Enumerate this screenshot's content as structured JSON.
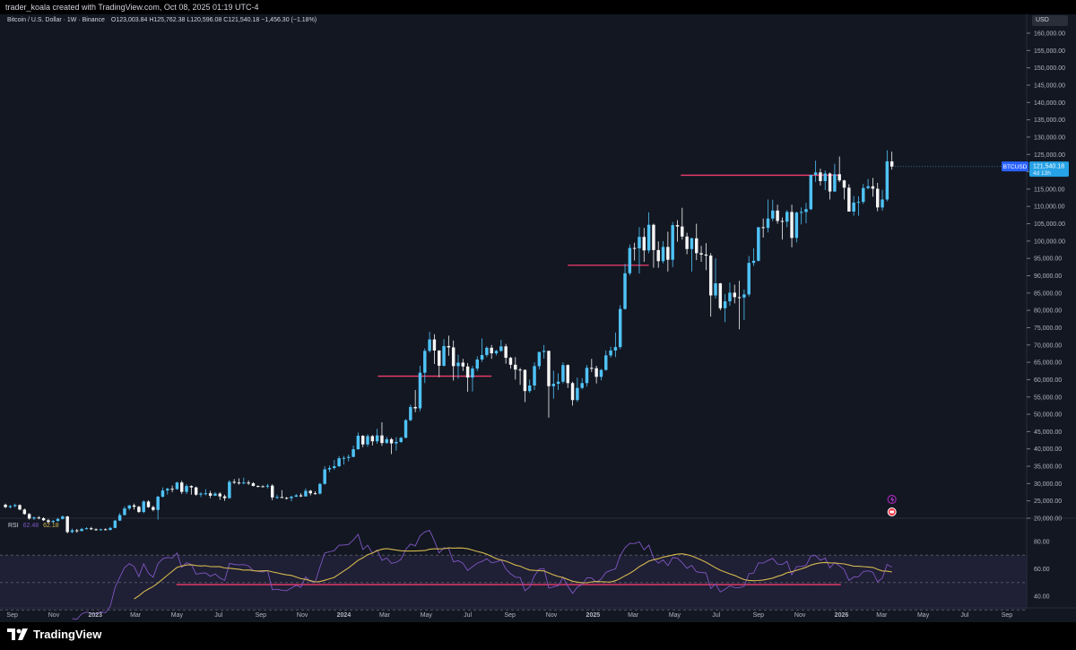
{
  "header": {
    "attribution": "trader_koala created with TradingView.com, Oct 08, 2025 01:19 UTC-4",
    "symbol_line": "Bitcoin / U.S. Dollar · 1W · Binance",
    "ohlc": "O123,003.84  H125,762.38  L120,596.08  C121,540.18  −1,456.30 (−1.18%)"
  },
  "currency_button": "USD",
  "price_tag": {
    "symbol": "BTCUSD",
    "price": "121,540.18",
    "countdown": "4d 13h"
  },
  "rsi": {
    "name": "RSI",
    "value": "62.48",
    "ma_value": "62.18"
  },
  "brand": "TradingView",
  "colors": {
    "up": "#4fc3f7",
    "down": "#f5f5f5",
    "level": "#f23d6d",
    "rsi": "#7e57c2",
    "rsi_ma": "#d4b84f",
    "background": "#131722"
  },
  "chart_data": {
    "type": "candlestick",
    "timeframe": "1W",
    "price_axis": {
      "min": 20000,
      "max": 160000,
      "step": 5000,
      "scale": "linear",
      "labels": [
        "160,000.00",
        "155,000.00",
        "150,000.00",
        "145,000.00",
        "140,000.00",
        "135,000.00",
        "130,000.00",
        "125,000.00",
        "120,000.00",
        "115,000.00",
        "110,000.00",
        "105,000.00",
        "100,000.00",
        "95,000.00",
        "90,000.00",
        "85,000.00",
        "80,000.00",
        "75,000.00",
        "70,000.00",
        "65,000.00",
        "60,000.00",
        "55,000.00",
        "50,000.00",
        "45,000.00",
        "40,000.00",
        "35,000.00",
        "30,000.00",
        "25,000.00",
        "20,000.00"
      ]
    },
    "time_axis": {
      "start": "2022-08-14",
      "end": "2026-09-30",
      "ticks": [
        {
          "label": "Sep",
          "date": "2022-09-01"
        },
        {
          "label": "Nov",
          "date": "2022-11-01"
        },
        {
          "label": "2023",
          "date": "2023-01-01"
        },
        {
          "label": "Mar",
          "date": "2023-03-01"
        },
        {
          "label": "May",
          "date": "2023-05-01"
        },
        {
          "label": "Jul",
          "date": "2023-07-01"
        },
        {
          "label": "Sep",
          "date": "2023-09-01"
        },
        {
          "label": "Nov",
          "date": "2023-11-01"
        },
        {
          "label": "2024",
          "date": "2024-01-01"
        },
        {
          "label": "Mar",
          "date": "2024-03-01"
        },
        {
          "label": "May",
          "date": "2024-05-01"
        },
        {
          "label": "Jul",
          "date": "2024-07-01"
        },
        {
          "label": "Sep",
          "date": "2024-09-01"
        },
        {
          "label": "Nov",
          "date": "2024-11-01"
        },
        {
          "label": "2025",
          "date": "2025-01-01"
        },
        {
          "label": "Mar",
          "date": "2025-03-01"
        },
        {
          "label": "May",
          "date": "2025-05-01"
        },
        {
          "label": "Jul",
          "date": "2025-07-01"
        },
        {
          "label": "Sep",
          "date": "2025-09-01"
        },
        {
          "label": "Nov",
          "date": "2025-11-01"
        },
        {
          "label": "2026",
          "date": "2026-01-01"
        },
        {
          "label": "Mar",
          "date": "2026-03-01"
        },
        {
          "label": "May",
          "date": "2026-05-01"
        },
        {
          "label": "Jul",
          "date": "2026-07-01"
        },
        {
          "label": "Sep",
          "date": "2026-09-01"
        }
      ]
    },
    "first_candle_week": "2022-08-22",
    "candles": [
      [
        23900,
        24200,
        22900,
        23200
      ],
      [
        23200,
        23800,
        22800,
        23500
      ],
      [
        23500,
        24200,
        23100,
        23800
      ],
      [
        23800,
        24000,
        22300,
        22500
      ],
      [
        22500,
        22800,
        21000,
        21200
      ],
      [
        21200,
        21500,
        19600,
        19900
      ],
      [
        19900,
        20500,
        19500,
        20200
      ],
      [
        20200,
        20600,
        19700,
        20000
      ],
      [
        20000,
        20300,
        19200,
        19400
      ],
      [
        19400,
        19800,
        18500,
        18900
      ],
      [
        18900,
        19500,
        18700,
        19200
      ],
      [
        19200,
        20100,
        19000,
        19800
      ],
      [
        19800,
        20800,
        19600,
        20500
      ],
      [
        20500,
        20700,
        15600,
        16000
      ],
      [
        16000,
        17000,
        15700,
        16500
      ],
      [
        16500,
        16900,
        15800,
        16300
      ],
      [
        16300,
        17200,
        16200,
        16900
      ],
      [
        16900,
        17400,
        16700,
        17100
      ],
      [
        17100,
        17500,
        16600,
        16800
      ],
      [
        16800,
        17100,
        16400,
        16600
      ],
      [
        16600,
        17000,
        16400,
        16800
      ],
      [
        16800,
        17100,
        16500,
        16600
      ],
      [
        16600,
        17500,
        16500,
        17200
      ],
      [
        17200,
        19500,
        17100,
        19300
      ],
      [
        19300,
        21500,
        19200,
        20900
      ],
      [
        20900,
        23400,
        20800,
        22800
      ],
      [
        22800,
        23800,
        22300,
        23700
      ],
      [
        23700,
        24200,
        22500,
        23300
      ],
      [
        23300,
        23600,
        21500,
        21800
      ],
      [
        21800,
        25200,
        21400,
        24800
      ],
      [
        24800,
        25200,
        23000,
        23200
      ],
      [
        23200,
        23600,
        22000,
        22400
      ],
      [
        22400,
        26500,
        19600,
        26200
      ],
      [
        26200,
        28900,
        26000,
        28000
      ],
      [
        28000,
        28800,
        26800,
        28500
      ],
      [
        28500,
        29400,
        27500,
        28400
      ],
      [
        28400,
        30500,
        28200,
        30300
      ],
      [
        30300,
        30800,
        27000,
        27600
      ],
      [
        27600,
        29800,
        27000,
        29300
      ],
      [
        29300,
        29500,
        26800,
        28900
      ],
      [
        28900,
        29100,
        26500,
        26800
      ],
      [
        26800,
        27500,
        26100,
        27100
      ],
      [
        27100,
        28400,
        26600,
        27200
      ],
      [
        27200,
        27900,
        25800,
        26500
      ],
      [
        26500,
        27500,
        26400,
        27100
      ],
      [
        27100,
        27500,
        25300,
        26300
      ],
      [
        26300,
        26800,
        25000,
        25800
      ],
      [
        25800,
        31000,
        25600,
        30500
      ],
      [
        30500,
        31300,
        29900,
        30300
      ],
      [
        30300,
        31500,
        29700,
        30200
      ],
      [
        30200,
        31700,
        29800,
        30300
      ],
      [
        30300,
        30900,
        29600,
        30100
      ],
      [
        30100,
        30400,
        29200,
        29300
      ],
      [
        29300,
        29500,
        28900,
        29200
      ],
      [
        29200,
        29500,
        29000,
        29100
      ],
      [
        29100,
        29900,
        28600,
        29400
      ],
      [
        29400,
        29800,
        25200,
        26000
      ],
      [
        26000,
        26800,
        25600,
        26100
      ],
      [
        26100,
        28100,
        25800,
        25900
      ],
      [
        25900,
        26100,
        25400,
        25800
      ],
      [
        25800,
        26500,
        24900,
        26200
      ],
      [
        26200,
        27000,
        26100,
        26600
      ],
      [
        26600,
        27200,
        26100,
        26300
      ],
      [
        26300,
        28600,
        26200,
        27900
      ],
      [
        27900,
        28200,
        26600,
        27200
      ],
      [
        27200,
        27800,
        26800,
        27100
      ],
      [
        27100,
        30200,
        26800,
        29900
      ],
      [
        29900,
        35000,
        29700,
        34100
      ],
      [
        34100,
        35200,
        33300,
        34500
      ],
      [
        34500,
        36800,
        34000,
        35000
      ],
      [
        35000,
        37900,
        34800,
        37300
      ],
      [
        37300,
        38000,
        35500,
        37400
      ],
      [
        37400,
        38400,
        36400,
        37700
      ],
      [
        37700,
        41000,
        37600,
        39900
      ],
      [
        39900,
        44700,
        39800,
        43800
      ],
      [
        43800,
        44000,
        40500,
        41300
      ],
      [
        41300,
        44200,
        40600,
        43700
      ],
      [
        43700,
        44000,
        41000,
        42200
      ],
      [
        42200,
        45800,
        41500,
        43900
      ],
      [
        43900,
        47700,
        40900,
        41700
      ],
      [
        41700,
        43500,
        41500,
        42800
      ],
      [
        42800,
        43200,
        38500,
        41600
      ],
      [
        41600,
        43400,
        39500,
        42000
      ],
      [
        42000,
        43500,
        41700,
        43200
      ],
      [
        43200,
        48600,
        43100,
        48300
      ],
      [
        48300,
        52800,
        48000,
        52100
      ],
      [
        52100,
        57000,
        50600,
        51700
      ],
      [
        51700,
        64000,
        50900,
        62000
      ],
      [
        62000,
        69000,
        59000,
        68300
      ],
      [
        68300,
        73800,
        67800,
        71600
      ],
      [
        71600,
        73100,
        64500,
        68400
      ],
      [
        68400,
        68500,
        60700,
        64000
      ],
      [
        64000,
        71700,
        63800,
        69700
      ],
      [
        69700,
        72700,
        66900,
        69300
      ],
      [
        69300,
        71300,
        59700,
        63900
      ],
      [
        63900,
        67200,
        60300,
        64900
      ],
      [
        64900,
        66000,
        62500,
        63800
      ],
      [
        63800,
        64800,
        56500,
        60600
      ],
      [
        60600,
        64000,
        56600,
        63200
      ],
      [
        63200,
        66700,
        62500,
        65800
      ],
      [
        65800,
        71900,
        65100,
        67100
      ],
      [
        67100,
        69600,
        66500,
        69200
      ],
      [
        69200,
        70000,
        66000,
        67600
      ],
      [
        67600,
        68600,
        67000,
        68300
      ],
      [
        68300,
        71500,
        68000,
        69600
      ],
      [
        69600,
        70300,
        64600,
        66300
      ],
      [
        66300,
        66600,
        63200,
        64300
      ],
      [
        64300,
        66500,
        60000,
        62900
      ],
      [
        62900,
        63400,
        58500,
        62800
      ],
      [
        62800,
        63000,
        53500,
        56700
      ],
      [
        56700,
        60000,
        56200,
        58300
      ],
      [
        58300,
        65000,
        57000,
        63900
      ],
      [
        63900,
        68000,
        63000,
        68000
      ],
      [
        68000,
        70000,
        66100,
        68300
      ],
      [
        68300,
        68400,
        49000,
        58100
      ],
      [
        58100,
        62600,
        54500,
        58800
      ],
      [
        58800,
        61800,
        57000,
        59400
      ],
      [
        59400,
        65000,
        58900,
        64200
      ],
      [
        64200,
        64400,
        57600,
        59000
      ],
      [
        59000,
        59400,
        52500,
        54100
      ],
      [
        54100,
        60600,
        53600,
        57600
      ],
      [
        57600,
        60400,
        57200,
        59000
      ],
      [
        59000,
        64200,
        58000,
        63400
      ],
      [
        63400,
        66000,
        62200,
        63300
      ],
      [
        63300,
        64000,
        58900,
        60800
      ],
      [
        60800,
        63100,
        59800,
        62800
      ],
      [
        62800,
        68400,
        62600,
        67000
      ],
      [
        67000,
        69500,
        66400,
        68400
      ],
      [
        68400,
        73600,
        66500,
        69400
      ],
      [
        69400,
        81500,
        68800,
        80400
      ],
      [
        80400,
        93400,
        80200,
        90700
      ],
      [
        90700,
        99000,
        90100,
        98000
      ],
      [
        98000,
        99500,
        94400,
        97900
      ],
      [
        97900,
        104000,
        90600,
        101200
      ],
      [
        101200,
        103800,
        94000,
        97300
      ],
      [
        97300,
        108300,
        96500,
        104700
      ],
      [
        104700,
        105000,
        92300,
        97400
      ],
      [
        97400,
        99900,
        92300,
        94200
      ],
      [
        94200,
        100000,
        93600,
        98300
      ],
      [
        98300,
        102700,
        91200,
        94600
      ],
      [
        94600,
        105500,
        92500,
        104600
      ],
      [
        104600,
        106000,
        99800,
        104200
      ],
      [
        104200,
        109600,
        100400,
        101300
      ],
      [
        101300,
        102400,
        96200,
        97700
      ],
      [
        97700,
        101000,
        91200,
        100800
      ],
      [
        100800,
        105000,
        94500,
        96500
      ],
      [
        96500,
        98600,
        94000,
        96100
      ],
      [
        96100,
        99400,
        91600,
        95800
      ],
      [
        95800,
        96500,
        78200,
        84300
      ],
      [
        84300,
        95000,
        83400,
        87800
      ],
      [
        87800,
        87900,
        80000,
        80600
      ],
      [
        80600,
        84700,
        76600,
        82600
      ],
      [
        82600,
        88000,
        81300,
        85100
      ],
      [
        85100,
        87400,
        82000,
        83800
      ],
      [
        83800,
        88500,
        74500,
        83700
      ],
      [
        83700,
        86000,
        77200,
        84600
      ],
      [
        84600,
        95700,
        84000,
        93700
      ],
      [
        93700,
        97900,
        92800,
        94300
      ],
      [
        94300,
        104000,
        94100,
        104000
      ],
      [
        104000,
        106500,
        101000,
        103800
      ],
      [
        103800,
        112000,
        102500,
        106500
      ],
      [
        106500,
        111900,
        105700,
        108800
      ],
      [
        108800,
        110500,
        105000,
        105800
      ],
      [
        105800,
        106800,
        100400,
        105600
      ],
      [
        105600,
        108900,
        104000,
        108400
      ],
      [
        108400,
        110500,
        98200,
        100900
      ],
      [
        100900,
        108500,
        99600,
        108200
      ],
      [
        108200,
        109700,
        104800,
        108400
      ],
      [
        108400,
        111000,
        105100,
        109200
      ],
      [
        109200,
        119000,
        108900,
        119100
      ],
      [
        119100,
        123200,
        117100,
        119800
      ],
      [
        119800,
        120900,
        116000,
        117300
      ],
      [
        117300,
        120400,
        114700,
        119500
      ],
      [
        119500,
        119800,
        112000,
        114300
      ],
      [
        114300,
        122300,
        114200,
        119300
      ],
      [
        119300,
        124400,
        117000,
        117500
      ],
      [
        117500,
        117700,
        112000,
        115400
      ],
      [
        115400,
        116400,
        108800,
        108500
      ],
      [
        108500,
        113000,
        107300,
        111100
      ],
      [
        111100,
        112900,
        107300,
        111300
      ],
      [
        111300,
        116500,
        110700,
        115300
      ],
      [
        115300,
        117900,
        114900,
        115800
      ],
      [
        115800,
        118200,
        112800,
        115100
      ],
      [
        115100,
        116800,
        108600,
        109700
      ],
      [
        109700,
        114800,
        108800,
        112000
      ],
      [
        112000,
        126200,
        111500,
        123000
      ],
      [
        123000,
        125800,
        120600,
        121500
      ]
    ],
    "last_price": 121540.18,
    "horizontal_levels": [
      {
        "price": 61000,
        "from": "2024-02-20",
        "to": "2024-08-05"
      },
      {
        "price": 93000,
        "from": "2024-11-25",
        "to": "2025-03-24"
      },
      {
        "price": 119000,
        "from": "2025-05-10",
        "to": "2025-12-31"
      }
    ],
    "rsi_axis": {
      "min": 25,
      "max": 95,
      "labels": [
        "80.00",
        "60.00",
        "40.00"
      ],
      "levels": [
        70,
        50,
        30
      ]
    },
    "rsi_support_level": {
      "value": 48.5,
      "from": "2023-04-30",
      "to": "2025-12-31"
    }
  }
}
